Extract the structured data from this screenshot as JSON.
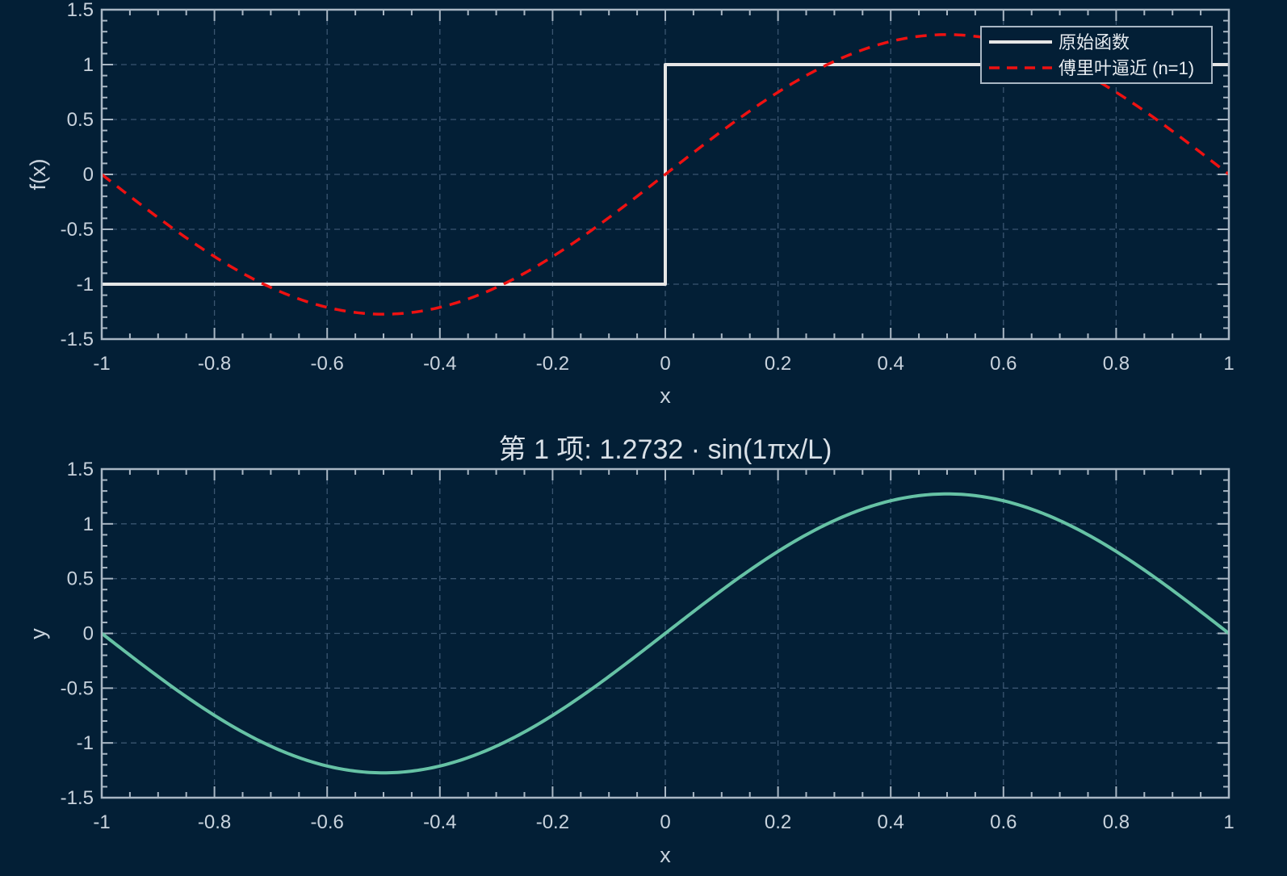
{
  "background": "#031f36",
  "chart_data": [
    {
      "type": "line",
      "title": "",
      "xlabel": "x",
      "ylabel": "f(x)",
      "xlim": [
        -1,
        1
      ],
      "ylim": [
        -1.5,
        1.5
      ],
      "xticks": [
        -1,
        -0.8,
        -0.6,
        -0.4,
        -0.2,
        0,
        0.2,
        0.4,
        0.6,
        0.8,
        1
      ],
      "xtick_labels": [
        "-1",
        "-0.8",
        "-0.6",
        "-0.4",
        "-0.2",
        "0",
        "0.2",
        "0.4",
        "0.6",
        "0.8",
        "1"
      ],
      "yticks": [
        -1.5,
        -1,
        -0.5,
        0,
        0.5,
        1,
        1.5
      ],
      "ytick_labels": [
        "-1.5",
        "-1",
        "-0.5",
        "0",
        "0.5",
        "1",
        "1.5"
      ],
      "grid": true,
      "legend_position": "top-right",
      "series": [
        {
          "name": "原始函数",
          "color": "#e6e6e6",
          "style": "solid",
          "x": [
            -1,
            0,
            0,
            1
          ],
          "y": [
            -1,
            -1,
            1,
            1
          ]
        },
        {
          "name": "傅里叶逼近 (n=1)",
          "color": "#ee1111",
          "style": "dashed",
          "function": "1.2732*sin(pi*x)",
          "amplitude": 1.2732,
          "x": [
            -1,
            -0.9,
            -0.8,
            -0.7,
            -0.6,
            -0.5,
            -0.4,
            -0.3,
            -0.2,
            -0.1,
            0,
            0.1,
            0.2,
            0.3,
            0.4,
            0.5,
            0.6,
            0.7,
            0.8,
            0.9,
            1
          ],
          "y": [
            0,
            -0.393,
            -0.748,
            -1.03,
            -1.211,
            -1.273,
            -1.211,
            -1.03,
            -0.748,
            -0.393,
            0,
            0.393,
            0.748,
            1.03,
            1.211,
            1.273,
            1.211,
            1.03,
            0.748,
            0.393,
            0
          ]
        }
      ]
    },
    {
      "type": "line",
      "title": "第 1 项: 1.2732 · sin(1πx/L)",
      "xlabel": "x",
      "ylabel": "y",
      "xlim": [
        -1,
        1
      ],
      "ylim": [
        -1.5,
        1.5
      ],
      "xticks": [
        -1,
        -0.8,
        -0.6,
        -0.4,
        -0.2,
        0,
        0.2,
        0.4,
        0.6,
        0.8,
        1
      ],
      "xtick_labels": [
        "-1",
        "-0.8",
        "-0.6",
        "-0.4",
        "-0.2",
        "0",
        "0.2",
        "0.4",
        "0.6",
        "0.8",
        "1"
      ],
      "yticks": [
        -1.5,
        -1,
        -0.5,
        0,
        0.5,
        1,
        1.5
      ],
      "ytick_labels": [
        "-1.5",
        "-1",
        "-0.5",
        "0",
        "0.5",
        "1",
        "1.5"
      ],
      "grid": true,
      "series": [
        {
          "color": "#66c2a5",
          "style": "solid",
          "function": "1.2732*sin(pi*x)",
          "amplitude": 1.2732,
          "x": [
            -1,
            -0.9,
            -0.8,
            -0.7,
            -0.6,
            -0.5,
            -0.4,
            -0.3,
            -0.2,
            -0.1,
            0,
            0.1,
            0.2,
            0.3,
            0.4,
            0.5,
            0.6,
            0.7,
            0.8,
            0.9,
            1
          ],
          "y": [
            0,
            -0.393,
            -0.748,
            -1.03,
            -1.211,
            -1.273,
            -1.211,
            -1.03,
            -0.748,
            -0.393,
            0,
            0.393,
            0.748,
            1.03,
            1.211,
            1.273,
            1.211,
            1.03,
            0.748,
            0.393,
            0
          ]
        }
      ]
    }
  ]
}
